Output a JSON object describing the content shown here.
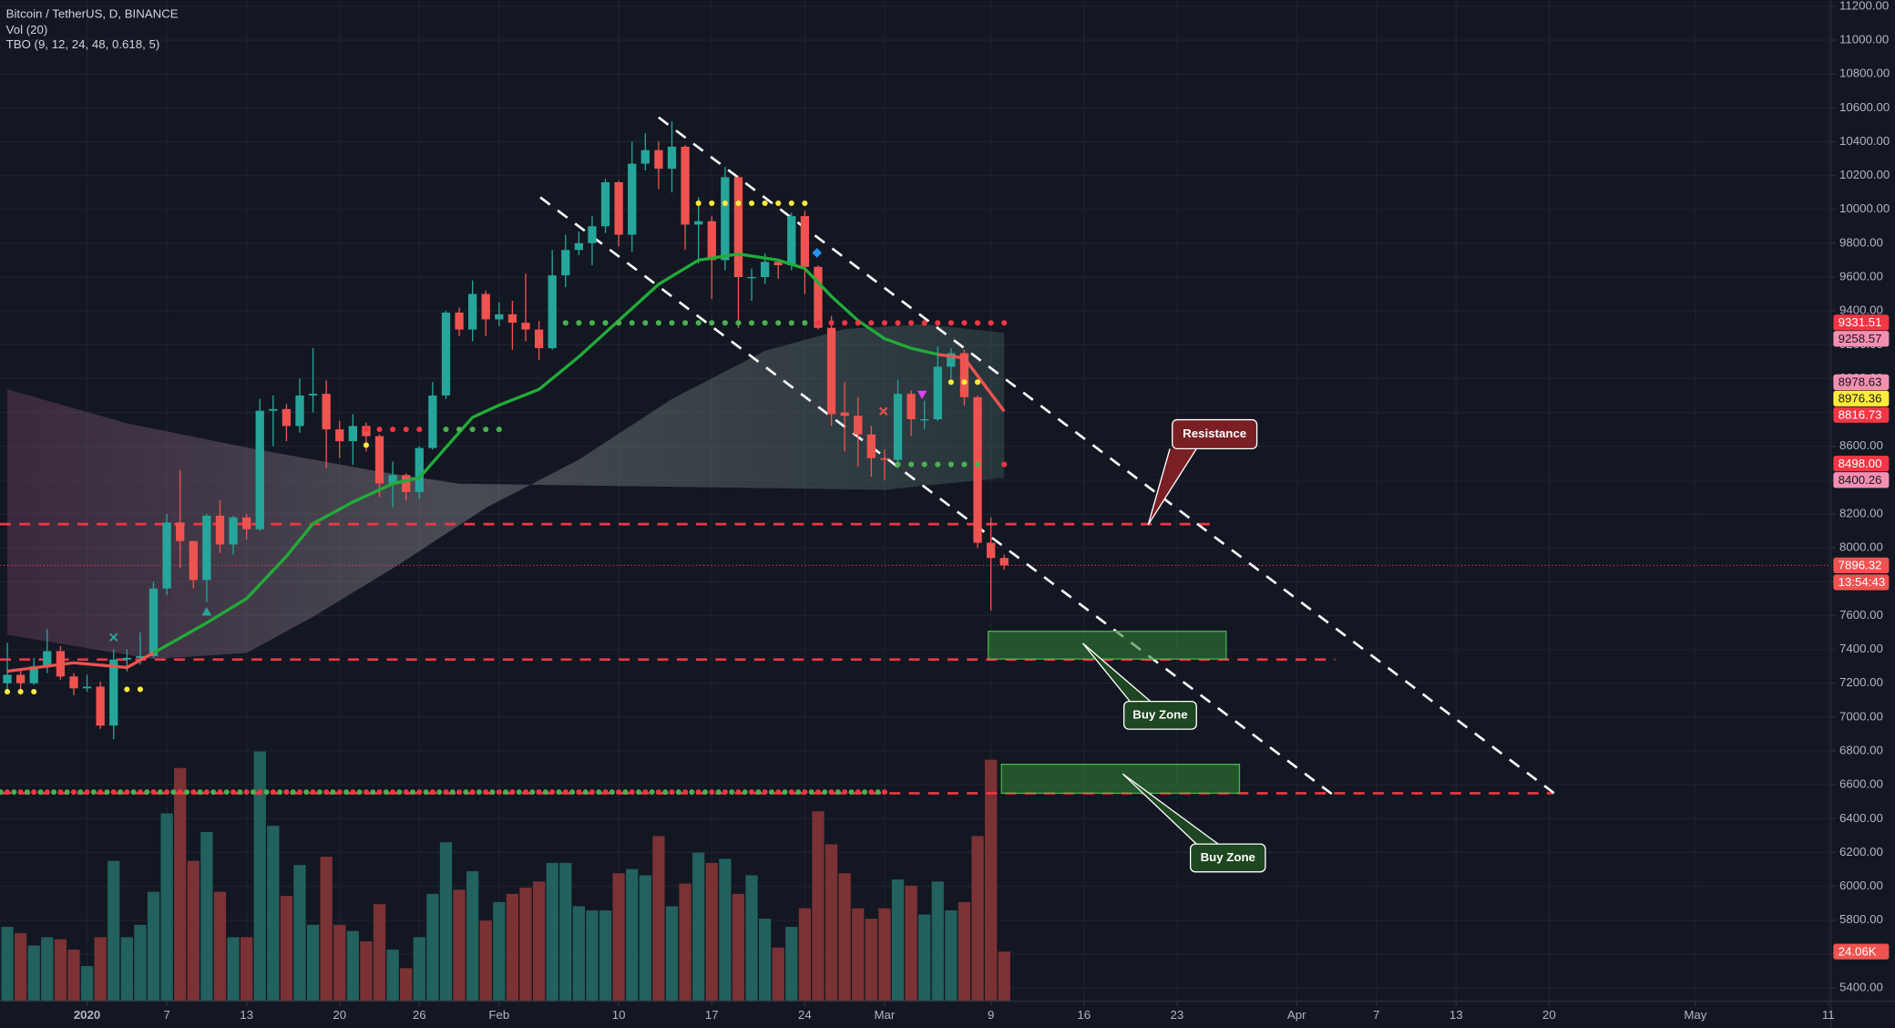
{
  "chart_data": {
    "type": "candlestick",
    "title": "Bitcoin / TetherUS, D, BINANCE",
    "indicators": [
      "Vol (20)",
      "TBO (9, 12, 24, 48, 0.618, 5)"
    ],
    "x": [
      -6,
      -5,
      -4,
      -3,
      -2,
      -1,
      0,
      1,
      2,
      3,
      4,
      5,
      6,
      7,
      8,
      9,
      10,
      11,
      12,
      13,
      14,
      15,
      16,
      17,
      18,
      19,
      20,
      21,
      22,
      23,
      24,
      25,
      26,
      27,
      28,
      29,
      30,
      31,
      32,
      33,
      34,
      35,
      36,
      37,
      38,
      39,
      40,
      41,
      42,
      43,
      44,
      45,
      46,
      47,
      48,
      49,
      50,
      51,
      52,
      53,
      54,
      55,
      56,
      57,
      58,
      59,
      60,
      61,
      62,
      63,
      64,
      65,
      66,
      67,
      68,
      69
    ],
    "open": [
      7200,
      7250,
      7200,
      7300,
      7390,
      7240,
      7170,
      7180,
      6950,
      7340,
      7350,
      7360,
      7760,
      8150,
      8040,
      7810,
      8190,
      8020,
      8180,
      8110,
      8810,
      8820,
      8720,
      8900,
      8910,
      8700,
      8630,
      8720,
      8660,
      8380,
      8430,
      8330,
      8590,
      8900,
      9390,
      9290,
      9500,
      9350,
      9380,
      9330,
      9290,
      9180,
      9610,
      9760,
      9800,
      9900,
      10160,
      9850,
      10270,
      10350,
      10240,
      10370,
      9910,
      9930,
      9700,
      10190,
      9600,
      9600,
      9690,
      9670,
      9960,
      9660,
      9300,
      8800,
      8780,
      8670,
      8530,
      8520,
      8910,
      8755,
      8760,
      9070,
      9150,
      8890,
      8030,
      7940
    ],
    "high": [
      7440,
      7290,
      7350,
      7520,
      7420,
      7260,
      7250,
      7210,
      7400,
      7400,
      7500,
      7800,
      8200,
      8460,
      8040,
      8200,
      8280,
      8190,
      8200,
      8880,
      8900,
      8850,
      9000,
      9180,
      8990,
      8750,
      8790,
      8740,
      8670,
      8510,
      8440,
      8600,
      8980,
      9400,
      9420,
      9580,
      9520,
      9450,
      9460,
      9620,
      9340,
      9760,
      9850,
      9870,
      9960,
      10180,
      10170,
      10400,
      10450,
      10400,
      10520,
      10380,
      10070,
      9960,
      10250,
      10200,
      9650,
      9740,
      9700,
      9980,
      9990,
      9670,
      9370,
      8980,
      8890,
      8720,
      8580,
      8990,
      8930,
      8870,
      9190,
      9180,
      9170,
      8900,
      8180,
      7960
    ],
    "low": [
      7160,
      7150,
      7190,
      7260,
      7220,
      7130,
      7150,
      6930,
      6870,
      7270,
      7310,
      7350,
      7720,
      7880,
      7760,
      7680,
      7970,
      7960,
      8050,
      8100,
      8600,
      8630,
      8680,
      8800,
      8470,
      8530,
      8490,
      8570,
      8300,
      8240,
      8280,
      8290,
      8580,
      8880,
      9250,
      9220,
      9250,
      9310,
      9170,
      9220,
      9110,
      9170,
      9540,
      9730,
      9670,
      9860,
      9780,
      9750,
      10230,
      10120,
      10100,
      9760,
      9680,
      9470,
      9640,
      9300,
      9460,
      9560,
      9590,
      9640,
      9500,
      9290,
      8720,
      8570,
      8480,
      8420,
      8400,
      8470,
      8660,
      8700,
      8750,
      9000,
      8840,
      8000,
      7630,
      7870
    ],
    "close": [
      7250,
      7200,
      7300,
      7390,
      7240,
      7170,
      7180,
      6950,
      7340,
      7350,
      7360,
      7760,
      8150,
      8040,
      7810,
      8190,
      8020,
      8180,
      8110,
      8810,
      8820,
      8720,
      8900,
      8910,
      8700,
      8630,
      8720,
      8660,
      8380,
      8430,
      8330,
      8590,
      8900,
      9390,
      9290,
      9500,
      9350,
      9380,
      9330,
      9290,
      9180,
      9610,
      9760,
      9800,
      9900,
      10160,
      9850,
      10270,
      10350,
      10240,
      10370,
      9910,
      9930,
      9700,
      10190,
      9600,
      9600,
      9690,
      9670,
      9960,
      9660,
      9300,
      8790,
      8780,
      8670,
      8530,
      8520,
      8910,
      8760,
      8760,
      9070,
      9150,
      8890,
      8030,
      7940,
      7896.32
    ],
    "up_color": "#26a69a",
    "down_color": "#ef5350",
    "xlim": [
      -6.55,
      131.2
    ],
    "xticks": [
      {
        "value": 0,
        "label": "2020"
      },
      {
        "value": 6,
        "label": "7"
      },
      {
        "value": 12,
        "label": "13"
      },
      {
        "value": 19,
        "label": "20"
      },
      {
        "value": 25,
        "label": "26"
      },
      {
        "value": 31,
        "label": "Feb"
      },
      {
        "value": 40,
        "label": "10"
      },
      {
        "value": 47,
        "label": "17"
      },
      {
        "value": 54,
        "label": "24"
      },
      {
        "value": 60,
        "label": "Mar"
      },
      {
        "value": 68,
        "label": "9"
      },
      {
        "value": 75,
        "label": "16"
      },
      {
        "value": 82,
        "label": "23"
      },
      {
        "value": 91,
        "label": "Apr"
      },
      {
        "value": 97,
        "label": "7"
      },
      {
        "value": 103,
        "label": "13"
      },
      {
        "value": 110,
        "label": "20"
      },
      {
        "value": 121,
        "label": "May"
      },
      {
        "value": 131,
        "label": "11"
      }
    ],
    "ylim": [
      5321.4,
      11235.7
    ],
    "yticks": [
      {
        "value": 5400,
        "label": "5400.00"
      },
      {
        "value": 5600,
        "label": "5600.00"
      },
      {
        "value": 5800,
        "label": "5800.00"
      },
      {
        "value": 6000,
        "label": "6000.00"
      },
      {
        "value": 6200,
        "label": "6200.00"
      },
      {
        "value": 6400,
        "label": "6400.00"
      },
      {
        "value": 6600,
        "label": "6600.00"
      },
      {
        "value": 6800,
        "label": "6800.00"
      },
      {
        "value": 7000,
        "label": "7000.00"
      },
      {
        "value": 7200,
        "label": "7200.00"
      },
      {
        "value": 7400,
        "label": "7400.00"
      },
      {
        "value": 7600,
        "label": "7600.00"
      },
      {
        "value": 7800,
        "label": "7800.00"
      },
      {
        "value": 8000,
        "label": "8000.00"
      },
      {
        "value": 8200,
        "label": "8200.00"
      },
      {
        "value": 8400,
        "label": "8400.00"
      },
      {
        "value": 8600,
        "label": "8600.00"
      },
      {
        "value": 8800,
        "label": "8800.00"
      },
      {
        "value": 9000,
        "label": "9000.00"
      },
      {
        "value": 9200,
        "label": "9200.00"
      },
      {
        "value": 9400,
        "label": "9400.00"
      },
      {
        "value": 9600,
        "label": "9600.00"
      },
      {
        "value": 9800,
        "label": "9800.00"
      },
      {
        "value": 10000,
        "label": "10000.00"
      },
      {
        "value": 10200,
        "label": "10200.00"
      },
      {
        "value": 10400,
        "label": "10400.00"
      },
      {
        "value": 10600,
        "label": "10600.00"
      },
      {
        "value": 10800,
        "label": "10800.00"
      },
      {
        "value": 11000,
        "label": "11000.00"
      },
      {
        "value": 11200,
        "label": "11200.00"
      }
    ],
    "grid": true,
    "volume": {
      "values": [
        36,
        33,
        27,
        31,
        30,
        25,
        17,
        31,
        68,
        31,
        37,
        53,
        91,
        113,
        68,
        82,
        53,
        31,
        31,
        121,
        85,
        51,
        66,
        37,
        70,
        37,
        34,
        29,
        47,
        25,
        16,
        31,
        52,
        77,
        54,
        63,
        39,
        48,
        52,
        55,
        58,
        67,
        67,
        46,
        44,
        44,
        62,
        64,
        61,
        80,
        46,
        57,
        72,
        67,
        69,
        52,
        61,
        40,
        26,
        36,
        45,
        92,
        76,
        62,
        45,
        40,
        45,
        59,
        56,
        42,
        58,
        44,
        48,
        80,
        117,
        24.06
      ],
      "value_labels": [
        null,
        null,
        null,
        null,
        null,
        null,
        null,
        null,
        null,
        null,
        null,
        null,
        null,
        null,
        null,
        null,
        null,
        null,
        null,
        null,
        null,
        null,
        null,
        null,
        null,
        null,
        null,
        null,
        null,
        null,
        null,
        null,
        null,
        null,
        null,
        null,
        null,
        null,
        null,
        null,
        null,
        null,
        null,
        null,
        null,
        null,
        null,
        null,
        null,
        null,
        null,
        null,
        null,
        null,
        null,
        null,
        null,
        null,
        null,
        null,
        null,
        null,
        null,
        null,
        null,
        null,
        null,
        null,
        null,
        null,
        null,
        null,
        null,
        null,
        null,
        "24.06K"
      ],
      "ylim": [
        0,
        140
      ],
      "up_color": "#22615d",
      "down_color": "#7b3235"
    },
    "price_labels": [
      {
        "value": 9331.51,
        "label": "9331.51",
        "color": "#f23645"
      },
      {
        "value": 9258.57,
        "label": "9258.57",
        "color": "#f48fb1"
      },
      {
        "value": 8978.63,
        "label": "8978.63",
        "color": "#f48fb1"
      },
      {
        "value": 8976.36,
        "label": "8976.36",
        "color": "#ffeb3b"
      },
      {
        "value": 8816.73,
        "label": "8816.73",
        "color": "#f23645"
      },
      {
        "value": 8498,
        "label": "8498.00",
        "color": "#f23645"
      },
      {
        "value": 8400.26,
        "label": "8400.26",
        "color": "#f48fb1"
      }
    ],
    "countdown": "13:54:43",
    "tbo_lines": [
      {
        "color": "#ef5350",
        "x": [
          -6,
          -1,
          3,
          5
        ],
        "values": [
          7271,
          7321,
          7293,
          7379
        ]
      },
      {
        "color": "#22ab39",
        "x": [
          5,
          9,
          12,
          15,
          17,
          20,
          23,
          25,
          27,
          29,
          31,
          34,
          37,
          40,
          43,
          46,
          49,
          52,
          54,
          56,
          58,
          60,
          62,
          64
        ],
        "values": [
          7379,
          7557,
          7700,
          7950,
          8143,
          8271,
          8379,
          8414,
          8593,
          8771,
          8843,
          8936,
          9129,
          9343,
          9557,
          9700,
          9736,
          9700,
          9650,
          9486,
          9343,
          9236,
          9179,
          9143
        ]
      },
      {
        "color": "#ef5350",
        "x": [
          64,
          66,
          69
        ],
        "values": [
          9143,
          9121,
          8807
        ]
      }
    ],
    "cloud": {
      "colors": [
        "#6a3f5e",
        "#8a8a90",
        "#3e5a58"
      ],
      "upper": {
        "x": [
          -6,
          3,
          12,
          22,
          28,
          60,
          69
        ],
        "values": [
          8936,
          8736,
          8593,
          8450,
          8379,
          8343,
          8414
        ]
      },
      "lower": {
        "x": [
          -6,
          5,
          12,
          17,
          23,
          30,
          37,
          44,
          51,
          57,
          63,
          69
        ],
        "values": [
          7486,
          7343,
          7379,
          7593,
          7879,
          8236,
          8521,
          8879,
          9164,
          9293,
          9321,
          9271
        ]
      }
    },
    "dot_rows": [
      {
        "color": "#ffeb3b",
        "level": 7150,
        "from": -6,
        "to": -4
      },
      {
        "color": "#ffeb3b",
        "level": 7164,
        "from": 3,
        "to": 4
      },
      {
        "color": "#ffeb3b",
        "level": 8607,
        "from": 21,
        "to": 21
      },
      {
        "color": "#ffeb3b",
        "level": 10036,
        "from": 46,
        "to": 54
      },
      {
        "color": "#ffeb3b",
        "level": 8979,
        "from": 65,
        "to": 67
      },
      {
        "color": "#4caf50",
        "level": 8700,
        "from": 27,
        "to": 31
      },
      {
        "color": "#4caf50",
        "level": 9329,
        "from": 36,
        "to": 54
      },
      {
        "color": "#4caf50",
        "level": 8493,
        "from": 61,
        "to": 67
      },
      {
        "color": "#4caf50",
        "level": 6557,
        "from": -6.5,
        "to": 60
      },
      {
        "color": "#f23645",
        "level": 8700,
        "from": 21,
        "to": 25
      },
      {
        "color": "#f23645",
        "level": 9329,
        "from": 55,
        "to": 69
      },
      {
        "color": "#f23645",
        "level": 8493,
        "from": 69,
        "to": 69
      },
      {
        "color": "#f23645",
        "level": 6557,
        "from": -6,
        "to": 60
      }
    ],
    "levels": [
      {
        "value": 8140,
        "to": 84.8
      },
      {
        "value": 7340,
        "to": 93.9
      },
      {
        "value": 6550,
        "to": 110.3
      }
    ],
    "level_color": "#f23645",
    "trendlines": [
      {
        "x": [
          43,
          110.5
        ],
        "y": [
          10543,
          6543
        ]
      },
      {
        "x": [
          34.1,
          93.7
        ],
        "y": [
          10071,
          6543
        ]
      }
    ],
    "zones": [
      {
        "x": [
          67.8,
          85.7
        ],
        "y": [
          7343,
          7507
        ]
      },
      {
        "x": [
          68.8,
          86.7
        ],
        "y": [
          6550,
          6721
        ]
      }
    ],
    "zone_color": "#2e7d32",
    "callouts": [
      "Resistance",
      "Buy Zone",
      "Buy Zone"
    ]
  }
}
